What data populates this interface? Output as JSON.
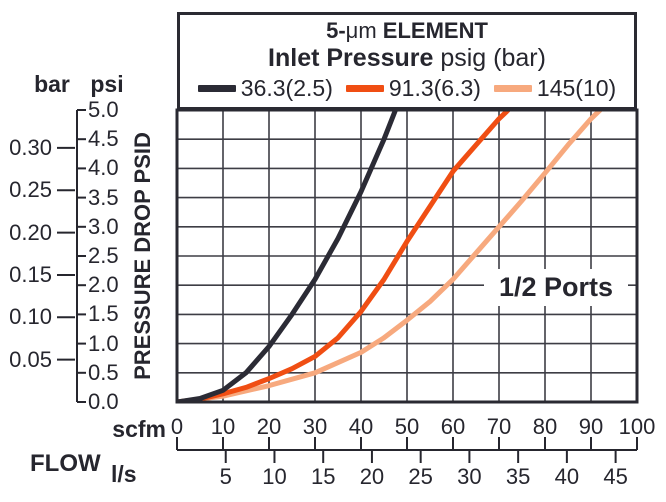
{
  "header": {
    "title_prefix": "5-",
    "title_micro": "μm",
    "title_suffix": " ELEMENT",
    "subtitle_bold": "Inlet Pressure",
    "subtitle_regular": " psig (bar)"
  },
  "legend": [
    {
      "label": "36.3(2.5)",
      "color": "#2b2b35"
    },
    {
      "label": "91.3(6.3)",
      "color": "#f04e13"
    },
    {
      "label": "145(10)",
      "color": "#f7a97e"
    }
  ],
  "axes": {
    "bar_unit": "bar",
    "psi_unit": "psi",
    "y_title": "PRESSURE DROP PSID",
    "psi_ticks": [
      {
        "label": "5.0",
        "value": 5.0
      },
      {
        "label": "4.5",
        "value": 4.5
      },
      {
        "label": "4.0",
        "value": 4.0
      },
      {
        "label": "3.5",
        "value": 3.5
      },
      {
        "label": "3.0",
        "value": 3.0
      },
      {
        "label": "2.5",
        "value": 2.5
      },
      {
        "label": "2.0",
        "value": 2.0
      },
      {
        "label": "1.5",
        "value": 1.5
      },
      {
        "label": "1.0",
        "value": 1.0
      },
      {
        "label": "0.5",
        "value": 0.5
      },
      {
        "label": "0.0",
        "value": 0.0
      }
    ],
    "bar_ticks": [
      {
        "label": "0.30",
        "value": 0.3
      },
      {
        "label": "0.25",
        "value": 0.25
      },
      {
        "label": "0.20",
        "value": 0.2
      },
      {
        "label": "0.15",
        "value": 0.15
      },
      {
        "label": "0.10",
        "value": 0.1
      },
      {
        "label": "0.05",
        "value": 0.05
      }
    ],
    "scfm_unit": "scfm",
    "scfm_ticks": [
      0,
      10,
      20,
      30,
      40,
      50,
      60,
      70,
      80,
      90,
      100
    ],
    "flow_label": "FLOW",
    "ls_unit": "l/s",
    "ls_ticks": [
      5,
      10,
      15,
      20,
      25,
      30,
      35,
      40,
      45
    ]
  },
  "annotation": "1/2 Ports",
  "colors": {
    "text": "#26262e",
    "grid": "#3d3d45",
    "frame": "#2a2a32"
  },
  "chart_data": {
    "type": "line",
    "title": "5-μm ELEMENT",
    "subtitle": "Inlet Pressure psig (bar)",
    "xlabel": "FLOW (scfm, secondary scale l/s)",
    "ylabel": "PRESSURE DROP PSID",
    "xlim": [
      0,
      100
    ],
    "ylim": [
      0,
      5
    ],
    "grid": true,
    "legend_position": "top",
    "annotation": "1/2 Ports",
    "secondary_y_unit_bar_ticks": [
      0.05,
      0.1,
      0.15,
      0.2,
      0.25,
      0.3
    ],
    "secondary_x_unit_ls_ticks": [
      5,
      10,
      15,
      20,
      25,
      30,
      35,
      40,
      45
    ],
    "series": [
      {
        "name": "36.3(2.5)",
        "color": "#2b2b35",
        "x": [
          0,
          5,
          10,
          15,
          20,
          25,
          30,
          35,
          40,
          45,
          47.5
        ],
        "y": [
          0,
          0.06,
          0.2,
          0.5,
          0.95,
          1.5,
          2.1,
          2.8,
          3.6,
          4.5,
          5.0
        ]
      },
      {
        "name": "91.3(6.3)",
        "color": "#f04e13",
        "x": [
          0,
          5,
          10,
          15,
          20,
          25,
          30,
          35,
          40,
          45,
          50,
          55,
          60,
          65,
          70,
          72
        ],
        "y": [
          0,
          0.05,
          0.14,
          0.25,
          0.4,
          0.57,
          0.78,
          1.1,
          1.55,
          2.1,
          2.75,
          3.35,
          3.95,
          4.4,
          4.85,
          5.0
        ]
      },
      {
        "name": "145(10)",
        "color": "#f7a97e",
        "x": [
          0,
          10,
          20,
          30,
          40,
          45,
          50,
          55,
          60,
          65,
          70,
          75,
          80,
          85,
          90,
          92
        ],
        "y": [
          0,
          0.1,
          0.28,
          0.5,
          0.85,
          1.1,
          1.4,
          1.72,
          2.1,
          2.55,
          3.0,
          3.45,
          3.92,
          4.4,
          4.85,
          5.0
        ]
      }
    ]
  }
}
